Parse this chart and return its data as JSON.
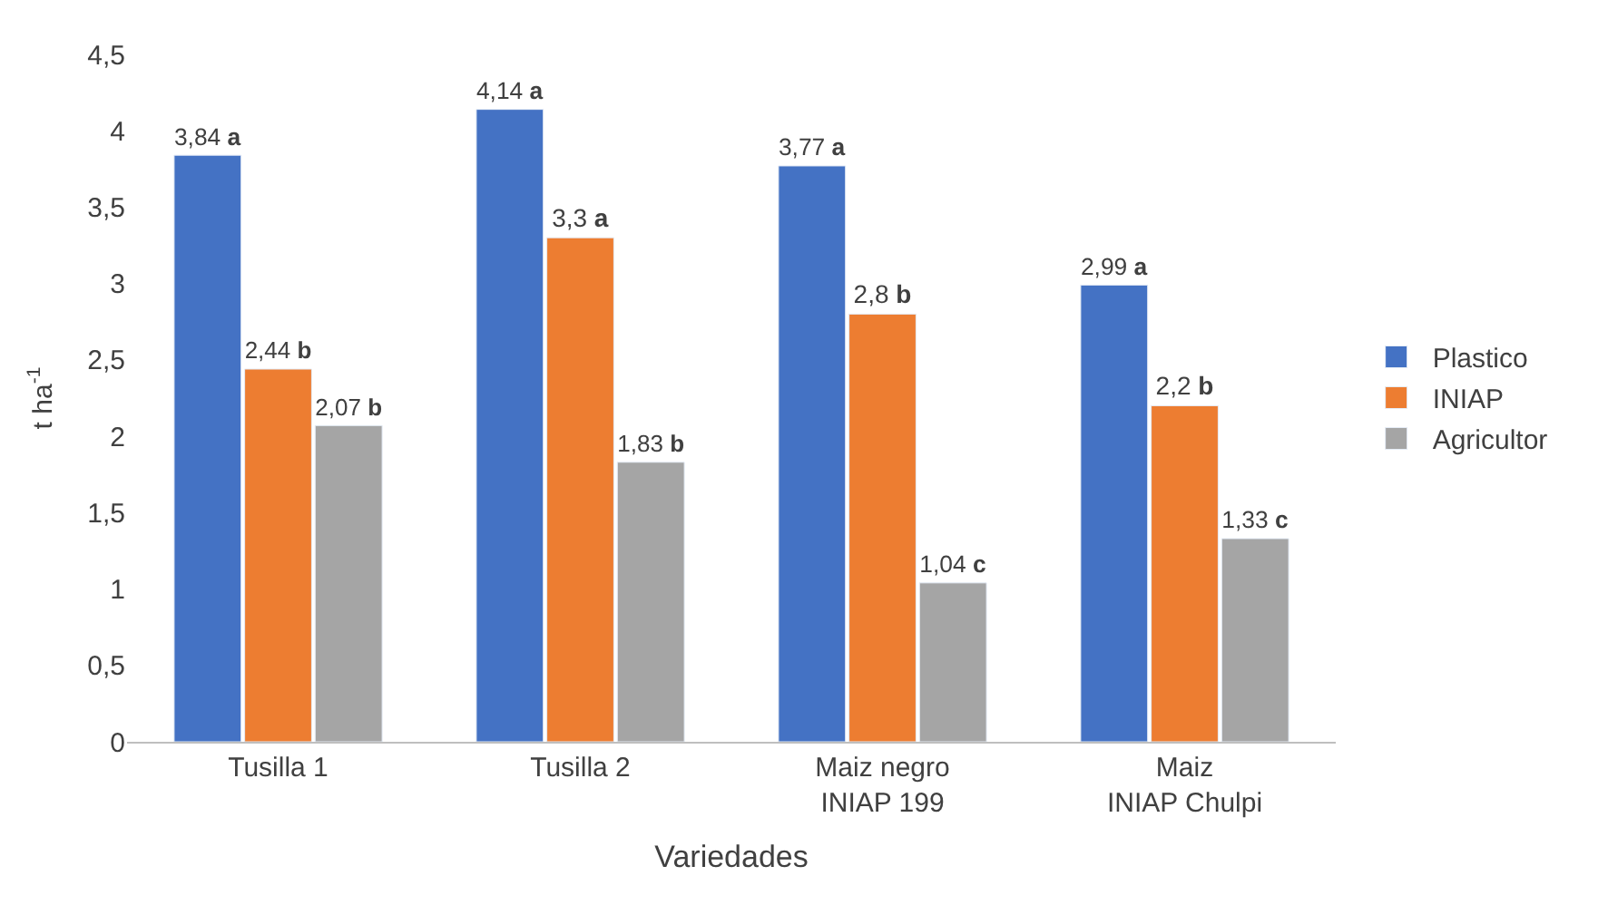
{
  "chart_data": {
    "type": "bar",
    "xlabel": "Variedades",
    "ylabel": "t ha$^{-1}$",
    "categories": [
      "Tusilla 1",
      "Tusilla 2",
      "Maiz negro\nINIAP 199",
      "Maiz\nINIAP Chulpi"
    ],
    "series": [
      {
        "name": "Plastico",
        "color": "#4472c4",
        "values": [
          3.84,
          4.14,
          3.77,
          2.99
        ],
        "value_labels": [
          "3,84 a",
          "4,14 a",
          "3,77 a",
          "2,99 a"
        ]
      },
      {
        "name": "INIAP",
        "color": "#ed7d31",
        "values": [
          2.44,
          3.3,
          2.8,
          2.2
        ],
        "value_labels": [
          "2,44 b",
          "3,3 a",
          "2,8 b",
          "2,2 b"
        ]
      },
      {
        "name": "Agricultor",
        "color": "#a5a5a5",
        "values": [
          2.07,
          1.83,
          1.04,
          1.33
        ],
        "value_labels": [
          "2,07 b",
          "1,83 b",
          "1,04 c",
          "1,33 c"
        ]
      }
    ],
    "ylim": [
      0,
      4.5
    ],
    "yticks": [
      0,
      {
        "value": 0.5,
        "label": "0,5"
      },
      1,
      {
        "value": 1.5,
        "label": "1,5"
      },
      2,
      {
        "value": 2.5,
        "label": "2,5"
      },
      3,
      {
        "value": 3.5,
        "label": "3,5"
      },
      4,
      {
        "value": 4.5,
        "label": "4,5"
      }
    ],
    "grid": false,
    "legend": "right"
  }
}
